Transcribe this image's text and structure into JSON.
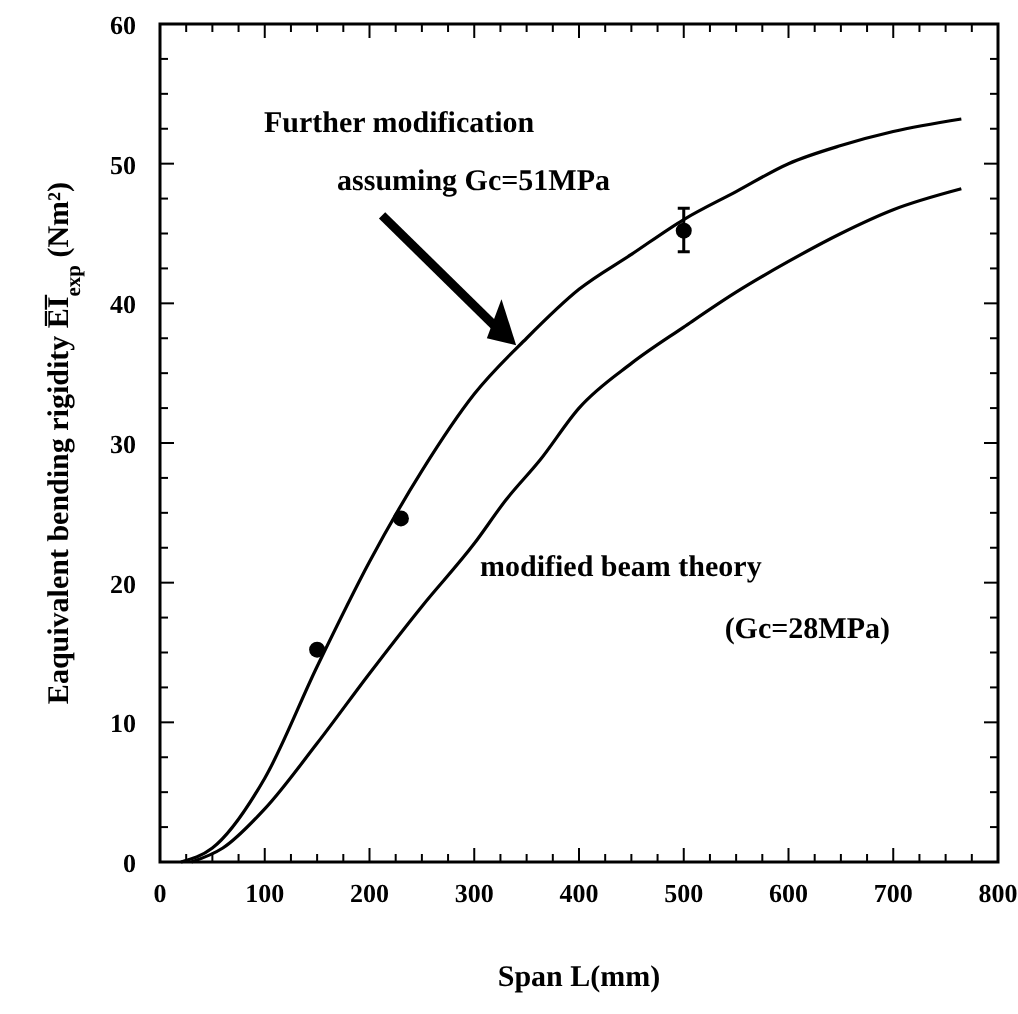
{
  "chart_data": {
    "type": "line",
    "xlabel": "Span L(mm)",
    "ylabel": "Eaquivalent bending rigidity E̅I̅$_{exp}$ (Nm²)",
    "xlim": [
      0,
      800
    ],
    "ylim": [
      0,
      60
    ],
    "xticks": [
      0,
      100,
      200,
      300,
      400,
      500,
      600,
      700,
      800
    ],
    "yticks": [
      0,
      10,
      20,
      30,
      40,
      50,
      60
    ],
    "grid": false,
    "series": [
      {
        "type": "line",
        "color": "#000000",
        "line_style": "solid",
        "marker": "none",
        "x": [
          20,
          50,
          100,
          150,
          200,
          250,
          300,
          350,
          400,
          450,
          500,
          550,
          600,
          650,
          700,
          765
        ],
        "values": [
          0,
          1,
          6,
          14,
          21.5,
          28,
          33.5,
          37.5,
          41,
          43.5,
          46,
          48,
          50,
          51.3,
          52.3,
          53.2
        ]
      },
      {
        "type": "line",
        "color": "#000000",
        "line_style": "solid",
        "marker": "none",
        "x": [
          30,
          60,
          100,
          150,
          200,
          250,
          300,
          330,
          363,
          400,
          450,
          500,
          550,
          600,
          650,
          700,
          765
        ],
        "values": [
          0,
          1,
          3.8,
          8.5,
          13.5,
          18.3,
          22.8,
          25.9,
          28.8,
          32.5,
          35.7,
          38.3,
          40.8,
          43,
          45,
          46.7,
          48.2
        ]
      },
      {
        "type": "scatter",
        "color": "#000000",
        "marker": "circle",
        "x": [
          150,
          230,
          500
        ],
        "values": [
          15.2,
          24.6,
          45.2
        ],
        "errors": [
          null,
          null,
          [
            43.7,
            46.8
          ]
        ]
      }
    ],
    "annotations": [
      "Further modification",
      "assuming Gc=51MPa",
      "modified beam theory",
      "(Gc=28MPa)"
    ]
  }
}
